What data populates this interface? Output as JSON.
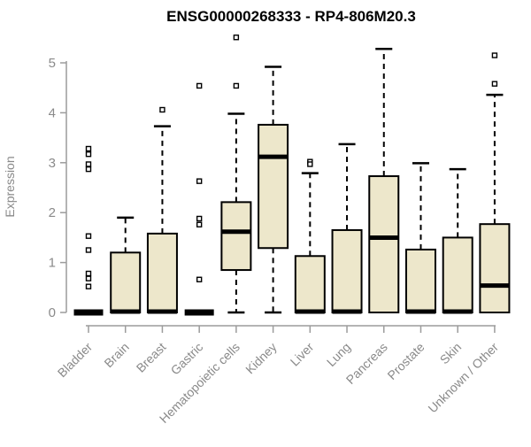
{
  "chart_data": {
    "type": "box",
    "title": "ENSG00000268333 - RP4-806M20.3",
    "ylabel": "Expression",
    "xlabel": "",
    "ylim": [
      0,
      5.6
    ],
    "yticks": [
      0,
      1,
      2,
      3,
      4,
      5
    ],
    "grid": false,
    "legend": false,
    "categories": [
      "Bladder",
      "Brain",
      "Breast",
      "Gastric",
      "Hematopoietic cells",
      "Kidney",
      "Liver",
      "Lung",
      "Pancreas",
      "Prostate",
      "Skin",
      "Unknown / Other"
    ],
    "boxes": [
      {
        "category": "Bladder",
        "q1": 0,
        "median": 0,
        "q3": 0,
        "whisker_low": 0,
        "whisker_high": 0,
        "outliers": [
          3.28,
          3.17,
          2.97,
          2.87,
          1.53,
          1.25,
          0.78,
          0.68,
          0.52
        ]
      },
      {
        "category": "Brain",
        "q1": 0,
        "median": 0,
        "q3": 1.2,
        "whisker_low": 0,
        "whisker_high": 1.9,
        "outliers": []
      },
      {
        "category": "Breast",
        "q1": 0,
        "median": 0,
        "q3": 1.58,
        "whisker_low": 0,
        "whisker_high": 3.73,
        "outliers": [
          4.06
        ]
      },
      {
        "category": "Gastric",
        "q1": 0,
        "median": 0,
        "q3": 0,
        "whisker_low": 0,
        "whisker_high": 0,
        "outliers": [
          4.54,
          2.63,
          1.88,
          1.76,
          0.66
        ]
      },
      {
        "category": "Hematopoietic cells",
        "q1": 0.85,
        "median": 1.6,
        "q3": 2.21,
        "whisker_low": 0,
        "whisker_high": 3.98,
        "outliers": [
          5.51,
          4.54
        ]
      },
      {
        "category": "Kidney",
        "q1": 1.29,
        "median": 3.1,
        "q3": 3.76,
        "whisker_low": 0,
        "whisker_high": 4.92,
        "outliers": []
      },
      {
        "category": "Liver",
        "q1": 0,
        "median": 0,
        "q3": 1.13,
        "whisker_low": 0,
        "whisker_high": 2.79,
        "outliers": [
          3.02,
          2.97
        ]
      },
      {
        "category": "Lung",
        "q1": 0,
        "median": 0,
        "q3": 1.65,
        "whisker_low": 0,
        "whisker_high": 3.37,
        "outliers": []
      },
      {
        "category": "Pancreas",
        "q1": 0,
        "median": 1.48,
        "q3": 2.73,
        "whisker_low": 0,
        "whisker_high": 5.28,
        "outliers": []
      },
      {
        "category": "Prostate",
        "q1": 0,
        "median": 0,
        "q3": 1.26,
        "whisker_low": 0,
        "whisker_high": 2.99,
        "outliers": []
      },
      {
        "category": "Skin",
        "q1": 0,
        "median": 0,
        "q3": 1.5,
        "whisker_low": 0,
        "whisker_high": 2.87,
        "outliers": []
      },
      {
        "category": "Unknown / Other",
        "q1": 0,
        "median": 0.52,
        "q3": 1.77,
        "whisker_low": 0,
        "whisker_high": 4.36,
        "outliers": [
          5.15,
          4.58
        ]
      }
    ],
    "colors": {
      "box_fill": "#EDE7CB",
      "box_border": "#000000",
      "median": "#000000",
      "whisker": "#000000",
      "outlier": "#000000",
      "axis": "#9c9c9c",
      "tick_label": "#8a8a8a",
      "title": "#000000",
      "background": "#FFFFFF"
    }
  }
}
